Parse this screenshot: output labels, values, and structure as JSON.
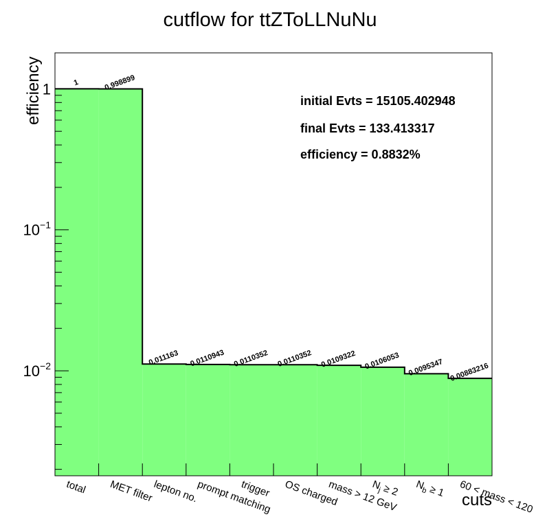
{
  "chart_data": {
    "type": "bar",
    "title": "cutflow for ttZToLLNuNu",
    "xlabel": "cuts",
    "ylabel": "efficiency",
    "yscale": "log",
    "ylim": [
      0.0018,
      1.8
    ],
    "yticks": [
      {
        "value": 1,
        "base": "1",
        "exp": ""
      },
      {
        "value": 0.1,
        "base": "10",
        "exp": "−1"
      },
      {
        "value": 0.01,
        "base": "10",
        "exp": "−2"
      }
    ],
    "categories": [
      "total",
      "MET filter",
      "lepton no.",
      "prompt matching",
      "trigger",
      "OS charged",
      "mass > 12 GeV",
      "N_j ≥ 2",
      "N_b ≥ 1",
      "60 < mass < 120"
    ],
    "values": [
      1,
      0.998899,
      0.011163,
      0.0110943,
      0.0110352,
      0.0110352,
      0.0109322,
      0.0106053,
      0.0095347,
      0.00883216
    ],
    "value_labels": [
      "1",
      "0.998899",
      "0.011163",
      "0.0110943",
      "0.0110352",
      "0.0110352",
      "0.0109322",
      "0.0106053",
      "0.0095347",
      "0.00883216"
    ],
    "fill_color": "#80ff80",
    "line_color": "#000000",
    "grid": false,
    "legend": "none"
  },
  "stats": {
    "initial": "initial Evts = 15105.402948",
    "final": "final Evts = 133.413317",
    "efficiency": "efficiency = 0.8832%"
  }
}
